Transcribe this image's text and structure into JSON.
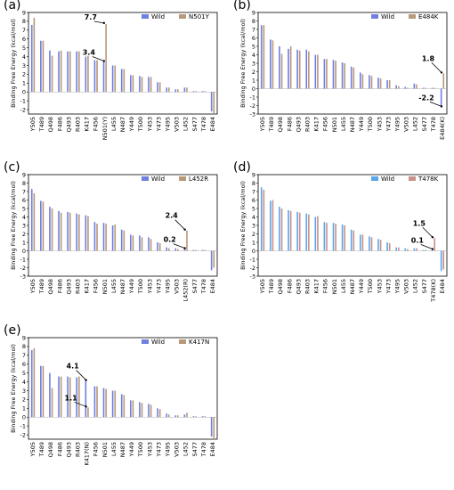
{
  "chart_data": [
    {
      "panel": "(a)",
      "type": "bar",
      "ylabel": "Binding Free Energy (kcal/mol)",
      "ylim": [
        -2.5,
        9
      ],
      "yticks": [
        -2,
        -1,
        0,
        1,
        2,
        3,
        4,
        5,
        6,
        7,
        8,
        9
      ],
      "categories": [
        "Y505",
        "T489",
        "Q498",
        "F486",
        "Q493",
        "R403",
        "K417",
        "F456",
        "N501(Y)",
        "L455",
        "N487",
        "Y449",
        "T500",
        "Y453",
        "Y473",
        "Y495",
        "V503",
        "L452",
        "S477",
        "T478",
        "E484"
      ],
      "series": [
        {
          "name": "Wild",
          "color": "#6f7fe0",
          "values": [
            7.6,
            5.8,
            4.7,
            4.6,
            4.6,
            4.6,
            4.0,
            3.6,
            3.4,
            3.0,
            2.6,
            1.9,
            1.8,
            1.7,
            1.1,
            0.5,
            0.3,
            0.5,
            0.1,
            0.1,
            -2.2
          ]
        },
        {
          "name": "N501Y",
          "color": "#b8997a",
          "values": [
            8.4,
            5.8,
            4.1,
            4.7,
            4.6,
            4.6,
            4.1,
            3.6,
            7.7,
            3.0,
            2.6,
            1.9,
            1.7,
            1.7,
            1.1,
            0.5,
            0.3,
            0.5,
            0.1,
            0.1,
            -2.4
          ]
        }
      ],
      "annotations": [
        {
          "text": "7.7",
          "index": 8,
          "value": 7.7
        },
        {
          "text": "3.4",
          "index": 8,
          "value": 3.4
        }
      ],
      "highlight_index": 8,
      "legend": "top-right"
    },
    {
      "panel": "(b)",
      "type": "bar",
      "ylabel": "Binding Free Energy (kcal/mol)",
      "ylim": [
        -3,
        9
      ],
      "yticks": [
        -3,
        -2,
        -1,
        0,
        1,
        2,
        3,
        4,
        5,
        6,
        7,
        8,
        9
      ],
      "categories": [
        "Y505",
        "T489",
        "Q498",
        "F486",
        "Q493",
        "R403",
        "K417",
        "F456",
        "N501",
        "L455",
        "N487",
        "Y449",
        "T500",
        "Y453",
        "Y473",
        "Y495",
        "V503",
        "L452",
        "S477",
        "T478",
        "E484(K)"
      ],
      "series": [
        {
          "name": "Wild",
          "color": "#6f7fe0",
          "values": [
            7.5,
            5.8,
            5.0,
            4.7,
            4.6,
            4.6,
            4.0,
            3.5,
            3.4,
            3.1,
            2.6,
            1.9,
            1.6,
            1.3,
            1.0,
            0.4,
            0.2,
            0.6,
            0.1,
            0.1,
            -2.2
          ]
        },
        {
          "name": "E484K",
          "color": "#b8997a",
          "values": [
            7.5,
            5.7,
            4.1,
            5.0,
            4.5,
            4.4,
            4.0,
            3.5,
            3.3,
            3.0,
            2.5,
            1.7,
            1.5,
            1.2,
            1.0,
            0.3,
            0.1,
            0.5,
            0.1,
            0.1,
            1.8
          ]
        }
      ],
      "annotations": [
        {
          "text": "1.8",
          "index": 20,
          "value": 1.8
        },
        {
          "text": "-2.2",
          "index": 20,
          "value": -2.2
        }
      ],
      "highlight_index": 20,
      "legend": "top-right"
    },
    {
      "panel": "(c)",
      "type": "bar",
      "ylabel": "Binding Free Energy (kcal/mol)",
      "ylim": [
        -3,
        9
      ],
      "yticks": [
        -3,
        -2,
        -1,
        0,
        1,
        2,
        3,
        4,
        5,
        6,
        7,
        8,
        9
      ],
      "categories": [
        "Y505",
        "T489",
        "Q498",
        "F486",
        "Q493",
        "R403",
        "K417",
        "F456",
        "N501",
        "L455",
        "N487",
        "Y449",
        "T500",
        "Y453",
        "Y473",
        "Y495",
        "V503",
        "L452(R)",
        "S477",
        "T478",
        "E484"
      ],
      "series": [
        {
          "name": "Wild",
          "color": "#6f7fe0",
          "values": [
            7.3,
            5.9,
            5.2,
            4.7,
            4.6,
            4.4,
            4.2,
            3.4,
            3.3,
            3.0,
            2.5,
            1.9,
            1.8,
            1.6,
            1.0,
            0.4,
            0.3,
            0.2,
            0.1,
            0.1,
            -2.3
          ]
        },
        {
          "name": "L452R",
          "color": "#b8997a",
          "values": [
            6.8,
            5.8,
            5.0,
            4.5,
            4.5,
            4.3,
            4.1,
            3.2,
            3.2,
            3.1,
            2.4,
            1.8,
            1.6,
            1.4,
            0.9,
            0.3,
            0.2,
            2.4,
            0.1,
            0.1,
            -2.0
          ]
        }
      ],
      "annotations": [
        {
          "text": "2.4",
          "index": 17,
          "value": 2.4
        },
        {
          "text": "0.2",
          "index": 17,
          "value": 0.2
        }
      ],
      "highlight_index": 17,
      "legend": "top-right"
    },
    {
      "panel": "(d)",
      "type": "bar",
      "ylabel": "Binding Free Energy (kcal/mol)",
      "ylim": [
        -3,
        9
      ],
      "yticks": [
        -3,
        -2,
        -1,
        0,
        1,
        2,
        3,
        4,
        5,
        6,
        7,
        8,
        9
      ],
      "categories": [
        "Y505",
        "T489",
        "Q498",
        "F486",
        "Q493",
        "R403",
        "K417",
        "F456",
        "N501",
        "L455",
        "N487",
        "Y449",
        "T500",
        "Y453",
        "Y473",
        "Y495",
        "V503",
        "L452",
        "S477",
        "T478(K)",
        "E484"
      ],
      "series": [
        {
          "name": "Wild",
          "color": "#5aa6e8",
          "values": [
            7.5,
            5.9,
            5.2,
            4.8,
            4.6,
            4.4,
            4.0,
            3.4,
            3.3,
            3.1,
            2.5,
            1.9,
            1.7,
            1.4,
            1.0,
            0.4,
            0.3,
            0.3,
            0.1,
            0.1,
            -2.4
          ]
        },
        {
          "name": "T478K",
          "color": "#c8918a",
          "values": [
            7.2,
            6.0,
            5.0,
            4.7,
            4.5,
            4.3,
            4.1,
            3.3,
            3.2,
            3.0,
            2.4,
            1.9,
            1.6,
            1.3,
            0.9,
            0.4,
            0.2,
            0.3,
            0.1,
            1.5,
            -2.2
          ]
        }
      ],
      "annotations": [
        {
          "text": "1.5",
          "index": 19,
          "value": 1.5
        },
        {
          "text": "0.1",
          "index": 19,
          "value": 0.1
        }
      ],
      "highlight_index": 19,
      "legend": "top-right"
    },
    {
      "panel": "(e)",
      "type": "bar",
      "ylabel": "Binding Free Energy (kcal/mol)",
      "ylim": [
        -2.5,
        9
      ],
      "yticks": [
        -2,
        -1,
        0,
        1,
        2,
        3,
        4,
        5,
        6,
        7,
        8,
        9
      ],
      "categories": [
        "Y505",
        "T489",
        "Q498",
        "F486",
        "Q493",
        "R403",
        "K417(N)",
        "F456",
        "N501",
        "L455",
        "N487",
        "Y449",
        "T500",
        "Y453",
        "Y473",
        "Y495",
        "V503",
        "L452",
        "S477",
        "T478",
        "E484"
      ],
      "series": [
        {
          "name": "Wild",
          "color": "#6f7fe0",
          "values": [
            7.6,
            5.8,
            5.0,
            4.6,
            4.6,
            4.5,
            4.1,
            3.5,
            3.3,
            3.0,
            2.6,
            1.9,
            1.7,
            1.5,
            1.0,
            0.4,
            0.2,
            0.3,
            0.1,
            0.1,
            -2.2
          ]
        },
        {
          "name": "K417N",
          "color": "#b8997a",
          "values": [
            7.8,
            5.8,
            3.3,
            4.6,
            4.5,
            4.6,
            1.1,
            3.5,
            3.2,
            3.0,
            2.5,
            1.9,
            1.6,
            1.4,
            0.9,
            0.3,
            0.2,
            0.5,
            0.1,
            0.1,
            -2.5
          ]
        }
      ],
      "annotations": [
        {
          "text": "4.1",
          "index": 6,
          "value": 4.1
        },
        {
          "text": "1.1",
          "index": 6,
          "value": 1.1
        }
      ],
      "highlight_index": 6,
      "legend": "top-right"
    }
  ]
}
